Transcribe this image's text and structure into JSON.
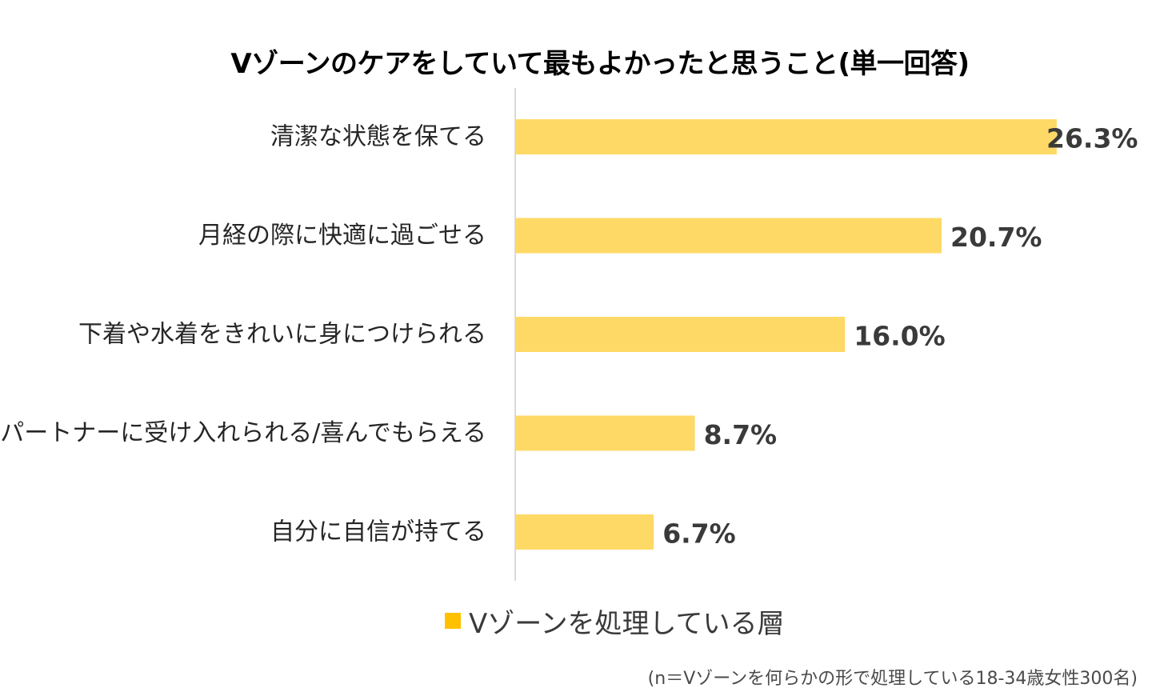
{
  "chart_data": {
    "type": "bar",
    "orientation": "horizontal",
    "title": "Vゾーンのケアをしていて最もよかったと思うこと(単一回答)",
    "categories": [
      "清潔な状態を保てる",
      "月経の際に快適に過ごせる",
      "下着や水着をきれいに身につけられる",
      "パートナーに受け入れられる/喜んでもらえる",
      "自分に自信が持てる"
    ],
    "series": [
      {
        "name": "Vゾーンを処理している層",
        "values": [
          26.3,
          20.7,
          16.0,
          8.7,
          6.7
        ],
        "value_labels": [
          "26.3%",
          "20.7%",
          "16.0%",
          "8.7%",
          "6.7%"
        ],
        "color": "#FFD966"
      }
    ],
    "unit": "%",
    "xlim": [
      0,
      30
    ],
    "grid": false,
    "legend": "bottom-center",
    "legend_swatch_color": "#FFC000",
    "axis_color": "#D9D9D9",
    "footnote": "(n＝Vゾーンを何らかの形で処理している18-34歳女性300名)"
  }
}
